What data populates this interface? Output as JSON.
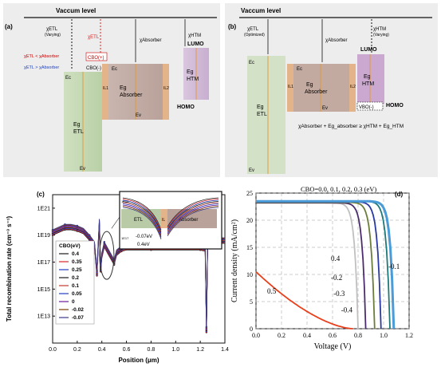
{
  "panel_a": {
    "letter": "(a)",
    "vaccum_label": "Vaccum level",
    "chi_etl": "χETL",
    "chi_etl_sub": "(Varying)",
    "chi_etl_red": "χETL",
    "chi_absorber": "χAbsorber",
    "chi_htm": "χHTM",
    "lumo": "LUMO",
    "homo": "HOMO",
    "cbo_pos": "CBO(+)",
    "cbo_neg": "CBO(-)",
    "eq_pos": "χETL < χAbsorber",
    "eq_neg": "χETL > χAbsorber",
    "ec": "Ec",
    "ev": "Ev",
    "etl_eg": "Eg",
    "etl_name": "ETL",
    "abs_eg": "Eg",
    "abs_name": "Absorber",
    "htm_eg": "Eg",
    "htm_name": "HTM",
    "il1": "IL1",
    "il2": "IL2",
    "abs_ec": "Ec",
    "abs_ev": "Ev"
  },
  "panel_b": {
    "letter": "(b)",
    "vaccum_label": "Vaccum level",
    "chi_etl": "χETL",
    "chi_etl_sub": "(Optimized)",
    "chi_absorber": "χAbsorber",
    "chi_htm": "χHTM",
    "chi_htm_sub": "(Varying)",
    "lumo": "LUMO",
    "homo": "HOMO",
    "vbo": "VBO(-)",
    "ec": "Ec",
    "ev": "Ev",
    "etl_eg": "Eg",
    "etl_name": "ETL",
    "abs_eg": "Eg",
    "abs_name": "Absorber",
    "htm_eg": "Eg",
    "htm_name": "HTM",
    "il1": "IL1",
    "il2": "IL2",
    "abs_ec": "Ec",
    "abs_ev": "Ev",
    "equation": "χAbsorber + Eg_absorber ≥ χHTM + Eg_HTM"
  },
  "chart_data": [
    {
      "panel": "(c)",
      "type": "line",
      "xlabel": "Position (μm)",
      "ylabel": "Total recombination rate (cm⁻³ s⁻¹)",
      "xlim": [
        0.0,
        1.4
      ],
      "ylim_log10": [
        11,
        22
      ],
      "xticks": [
        "0.0",
        "0.2",
        "0.4",
        "0.6",
        "0.8",
        "1.0",
        "1.2",
        "1.4"
      ],
      "yticks": [
        "1E13",
        "1E15",
        "1E17",
        "1E19",
        "1E21"
      ],
      "legend_title": "CBO(eV)",
      "legend_position": "left",
      "series": [
        {
          "name": "0.4",
          "color": "#1a1a1a",
          "marker": "square"
        },
        {
          "name": "0.35",
          "color": "#d62728",
          "marker": "circle"
        },
        {
          "name": "0.25",
          "color": "#1f3fbf",
          "marker": "triangle"
        },
        {
          "name": "0.2",
          "color": "#1a1a1a",
          "marker": "triangle-down"
        },
        {
          "name": "0.1",
          "color": "#c0392b",
          "marker": "diamond"
        },
        {
          "name": "0.05",
          "color": "#1f3fbf",
          "marker": "triangle-left"
        },
        {
          "name": "0",
          "color": "#6a1b9a",
          "marker": "triangle-right"
        },
        {
          "name": "-0.02",
          "color": "#7b3f00",
          "marker": "hexagon"
        },
        {
          "name": "-0.07",
          "color": "#3a3a8a",
          "marker": "star"
        }
      ],
      "profile_log10": [
        [
          0.0,
          19.2
        ],
        [
          0.05,
          19.4
        ],
        [
          0.1,
          19.6
        ],
        [
          0.15,
          19.6
        ],
        [
          0.2,
          19.5
        ],
        [
          0.25,
          19.3
        ],
        [
          0.3,
          18.8
        ],
        [
          0.34,
          18.3
        ],
        [
          0.36,
          16.2
        ],
        [
          0.38,
          20.0
        ],
        [
          0.39,
          16.5
        ],
        [
          0.4,
          17.5
        ],
        [
          0.42,
          18.3
        ],
        [
          0.45,
          17.8
        ],
        [
          0.5,
          17.0
        ],
        [
          0.52,
          17.7
        ],
        [
          0.56,
          18.0
        ],
        [
          0.6,
          18.1
        ],
        [
          0.8,
          18.1
        ],
        [
          1.0,
          18.1
        ],
        [
          1.2,
          18.1
        ],
        [
          1.24,
          18.0
        ],
        [
          1.25,
          12.0
        ],
        [
          1.26,
          18.6
        ],
        [
          1.3,
          18.6
        ],
        [
          1.4,
          18.6
        ]
      ],
      "inset": {
        "etl_label": "ETL",
        "il_label": "IL",
        "absorber_label": "Absorber",
        "ann1": "-0.07eV",
        "ann2": "0.4eV",
        "yticks": [
          "1E19",
          "1E17"
        ]
      }
    },
    {
      "panel": "(d)",
      "type": "line",
      "xlabel": "Voltage (V)",
      "ylabel": "Current density (mA/cm²)",
      "xlim": [
        0.0,
        1.2
      ],
      "ylim": [
        0,
        25
      ],
      "xticks": [
        "0.0",
        "0.2",
        "0.4",
        "0.6",
        "0.8",
        "1.0",
        "1.2"
      ],
      "yticks": [
        "0",
        "5",
        "10",
        "15",
        "20",
        "25"
      ],
      "grid": true,
      "header_label": "CBO=0.0, 0.1, 0.2, 0.3 (eV)",
      "series": [
        {
          "name": "0.5",
          "color": "#e8401c",
          "jsc": 10.5,
          "voc": 0.76,
          "n": 1.6
        },
        {
          "name": "-0.4",
          "color": "#c0c0c0",
          "jsc": 23.2,
          "voc": 0.8,
          "n": 30
        },
        {
          "name": "-0.3",
          "color": "#4b2d6e",
          "jsc": 23.2,
          "voc": 0.86,
          "n": 32
        },
        {
          "name": "-0.2",
          "color": "#6b7d3a",
          "jsc": 23.3,
          "voc": 0.93,
          "n": 34
        },
        {
          "name": "0.4",
          "color": "#2b3aa0",
          "jsc": 23.4,
          "voc": 0.98,
          "n": 36
        },
        {
          "name": "-0.1",
          "color": "#1e7a78",
          "jsc": 23.5,
          "voc": 1.05,
          "n": 38
        },
        {
          "name": "CBO=0.0-0.3",
          "color": "#4a9bd8",
          "jsc": 23.5,
          "voc": 1.08,
          "n": 40
        }
      ],
      "curve_labels": [
        {
          "text": "0.4",
          "x": 0.7,
          "y": 12.5
        },
        {
          "text": "-0.2",
          "x": 0.7,
          "y": 9.0
        },
        {
          "text": "-0.3",
          "x": 0.72,
          "y": 6.0
        },
        {
          "text": "-0.4",
          "x": 0.78,
          "y": 3.0
        },
        {
          "text": "-0.1",
          "x": 1.15,
          "y": 11.0
        },
        {
          "text": "0.5",
          "x": 0.2,
          "y": 6.5
        }
      ]
    }
  ],
  "panel_c_letter": "(c)",
  "panel_d_letter": "(d)"
}
